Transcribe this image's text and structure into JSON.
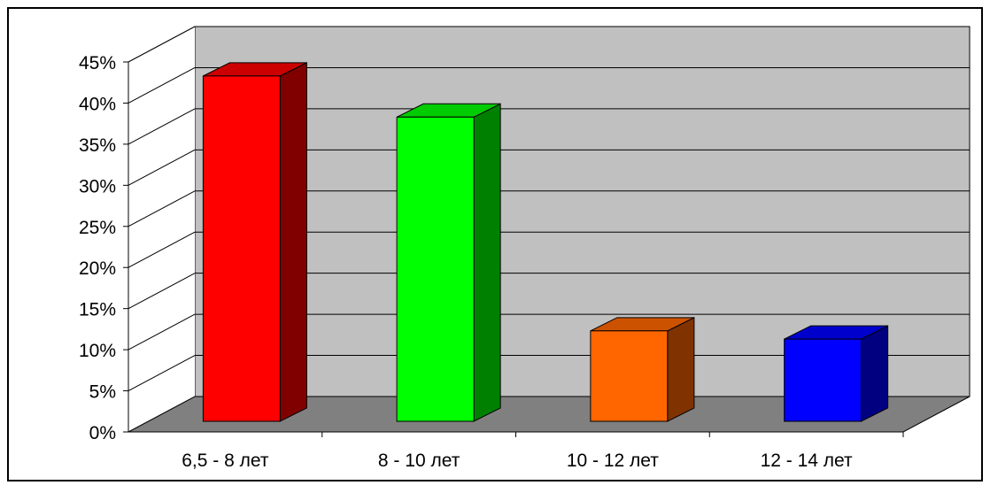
{
  "chart_data": {
    "type": "bar",
    "title": "",
    "xlabel": "",
    "ylabel": "",
    "categories": [
      "6,5 - 8 лет",
      "8 - 10 лет",
      "10 - 12 лет",
      "12 - 14 лет"
    ],
    "values": [
      0.42,
      0.37,
      0.11,
      0.1
    ],
    "ylim": [
      0,
      0.45
    ],
    "yticks": [
      "0%",
      "5%",
      "10%",
      "15%",
      "20%",
      "25%",
      "30%",
      "35%",
      "40%",
      "45%"
    ],
    "grid": true,
    "legend": "none",
    "three_d": true,
    "colors": {
      "bars_front": [
        "#ff0000",
        "#00ff00",
        "#ff6600",
        "#0000ff"
      ],
      "bars_side": [
        "#800000",
        "#008000",
        "#803300",
        "#000080"
      ],
      "bars_top": [
        "#cc0000",
        "#00cc00",
        "#cc5200",
        "#0000cc"
      ],
      "back_wall": "#c0c0c0",
      "floor": "#808080",
      "gridline": "#000000"
    }
  }
}
